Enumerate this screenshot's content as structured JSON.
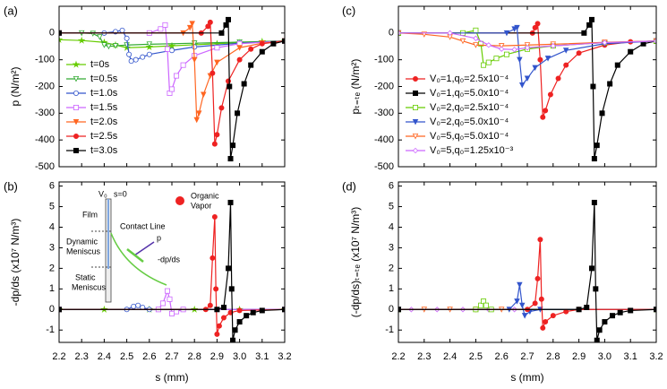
{
  "chart_data": [
    {
      "type": "line",
      "title": "(a)",
      "y_label": "p (N/m²)",
      "xlim": [
        2.2,
        3.2
      ],
      "xticks": [
        2.2,
        2.3,
        2.4,
        2.5,
        2.6,
        2.7,
        2.8,
        2.9,
        3,
        3.1,
        3.2
      ],
      "show_xtick_labels": false,
      "ylim": [
        -500,
        100
      ],
      "yticks": [
        -500,
        -400,
        -300,
        -200,
        -100,
        0
      ],
      "legend": "lower left",
      "series": [
        {
          "name": "t=0s",
          "color": "#66cc00",
          "marker": "star",
          "filled": true,
          "x": [
            2.2,
            2.3,
            2.4,
            2.45,
            2.5,
            2.6,
            2.7,
            2.8,
            2.9,
            3.0,
            3.1,
            3.2
          ],
          "values": [
            -25,
            -28,
            -35,
            -45,
            -55,
            -52,
            -48,
            -44,
            -40,
            -36,
            -32,
            -30
          ]
        },
        {
          "name": "t=0.5s",
          "color": "#33aa33",
          "marker": "triangle-down",
          "filled": false,
          "x": [
            2.2,
            2.3,
            2.35,
            2.38,
            2.4,
            2.42,
            2.45,
            2.5,
            2.6,
            2.8,
            3.0,
            3.2
          ],
          "values": [
            0,
            0,
            -2,
            -15,
            -45,
            -50,
            -48,
            -45,
            -42,
            -38,
            -34,
            -30
          ]
        },
        {
          "name": "t=1.0s",
          "color": "#3355cc",
          "marker": "circle",
          "filled": false,
          "x": [
            2.2,
            2.4,
            2.45,
            2.48,
            2.5,
            2.51,
            2.52,
            2.54,
            2.57,
            2.6,
            2.7,
            2.8,
            3.0,
            3.2
          ],
          "values": [
            0,
            0,
            5,
            10,
            -20,
            -80,
            -105,
            -100,
            -90,
            -80,
            -65,
            -52,
            -38,
            -30
          ]
        },
        {
          "name": "t=1.5s",
          "color": "#cc66ff",
          "marker": "square",
          "filled": false,
          "x": [
            2.2,
            2.6,
            2.65,
            2.67,
            2.68,
            2.69,
            2.7,
            2.72,
            2.75,
            2.8,
            2.9,
            3.0,
            3.2
          ],
          "values": [
            0,
            0,
            15,
            30,
            -60,
            -225,
            -210,
            -160,
            -120,
            -85,
            -55,
            -40,
            -30
          ]
        },
        {
          "name": "t=2.0s",
          "color": "#ff6622",
          "marker": "triangle-down",
          "filled": true,
          "x": [
            2.2,
            2.75,
            2.78,
            2.79,
            2.8,
            2.81,
            2.82,
            2.84,
            2.87,
            2.9,
            3.0,
            3.1,
            3.2
          ],
          "values": [
            0,
            0,
            20,
            35,
            -100,
            -325,
            -300,
            -230,
            -160,
            -110,
            -55,
            -38,
            -30
          ]
        },
        {
          "name": "t=2.5s",
          "color": "#ee2222",
          "marker": "circle",
          "filled": true,
          "x": [
            2.2,
            2.83,
            2.86,
            2.87,
            2.88,
            2.89,
            2.9,
            2.92,
            2.95,
            3.0,
            3.05,
            3.1,
            3.2
          ],
          "values": [
            0,
            0,
            25,
            40,
            -150,
            -415,
            -380,
            -280,
            -180,
            -100,
            -60,
            -40,
            -30
          ]
        },
        {
          "name": "t=3.0s",
          "color": "#000000",
          "marker": "square",
          "filled": true,
          "x": [
            2.2,
            2.92,
            2.94,
            2.95,
            2.955,
            2.96,
            2.97,
            2.99,
            3.02,
            3.05,
            3.1,
            3.15,
            3.2
          ],
          "values": [
            0,
            0,
            30,
            50,
            -200,
            -470,
            -420,
            -300,
            -190,
            -120,
            -70,
            -40,
            -30
          ]
        }
      ]
    },
    {
      "type": "line",
      "title": "(b)",
      "y_label": "-dp/ds (x10⁷ N/m³)",
      "x_label": "s (mm)",
      "xlim": [
        2.2,
        3.2
      ],
      "xticks": [
        2.2,
        2.3,
        2.4,
        2.5,
        2.6,
        2.7,
        2.8,
        2.9,
        {
          "value": 3,
          "label": "3.0"
        },
        3.1,
        3.2
      ],
      "show_xtick_labels": true,
      "ylim": [
        -1.6,
        6.2
      ],
      "yticks": [
        -1,
        0,
        1,
        2,
        3,
        4,
        5,
        6
      ],
      "annotations": [
        "V₀",
        "s=0",
        "Organic",
        "Vapor",
        "Film",
        "Contact Line",
        "p",
        "Dynamic",
        "Meniscus",
        "-dp/ds",
        "Static",
        "Meniscus"
      ],
      "series": [
        {
          "color": "#66cc00",
          "marker": "star",
          "filled": true,
          "x": [
            2.2,
            2.4,
            2.6,
            2.8,
            3.0,
            3.2
          ],
          "values": [
            0,
            0,
            0,
            0,
            0,
            0
          ]
        },
        {
          "color": "#3355cc",
          "marker": "circle",
          "filled": false,
          "x": [
            2.2,
            2.5,
            2.53,
            2.55,
            2.57,
            2.6,
            3.2
          ],
          "values": [
            0,
            0,
            0.15,
            0.2,
            0.1,
            0,
            0
          ]
        },
        {
          "color": "#cc66ff",
          "marker": "square",
          "filled": false,
          "x": [
            2.2,
            2.64,
            2.66,
            2.68,
            2.69,
            2.7,
            2.72,
            2.75,
            3.2
          ],
          "values": [
            0,
            0,
            0.3,
            0.9,
            0.5,
            -0.2,
            -0.1,
            0,
            0
          ]
        },
        {
          "color": "#ee2222",
          "marker": "circle",
          "filled": true,
          "x": [
            2.2,
            2.85,
            2.87,
            2.88,
            2.89,
            2.895,
            2.9,
            2.91,
            2.93,
            2.96,
            3.0,
            3.2
          ],
          "values": [
            0,
            0,
            0.2,
            2.5,
            4.5,
            1,
            -1.2,
            -0.8,
            -0.4,
            -0.15,
            -0.05,
            0
          ]
        },
        {
          "color": "#000000",
          "marker": "square",
          "filled": true,
          "x": [
            2.2,
            2.9,
            2.93,
            2.95,
            2.96,
            2.965,
            2.97,
            2.98,
            3.0,
            3.03,
            3.06,
            3.1,
            3.2
          ],
          "values": [
            0,
            0,
            0.1,
            2,
            5.2,
            1,
            -1.5,
            -1,
            -0.6,
            -0.3,
            -0.15,
            -0.05,
            0
          ]
        }
      ]
    },
    {
      "type": "line",
      "title": "(c)",
      "y_label": "pₜ₌ₜₑ (N/m²)",
      "xlim": [
        2.2,
        3.2
      ],
      "xticks": [
        2.2,
        2.3,
        2.4,
        2.5,
        2.6,
        2.7,
        2.8,
        2.9,
        3,
        3.1,
        3.2
      ],
      "show_xtick_labels": false,
      "ylim": [
        -500,
        100
      ],
      "yticks": [
        -500,
        -400,
        -300,
        -200,
        -100,
        0
      ],
      "legend": "lower left",
      "series": [
        {
          "name": "V₀=1,q₀=2.5x10⁻⁴",
          "color": "#ee2222",
          "marker": "circle",
          "filled": true,
          "x": [
            2.2,
            2.72,
            2.73,
            2.74,
            2.75,
            2.76,
            2.77,
            2.79,
            2.82,
            2.85,
            2.9,
            3.0,
            3.1,
            3.2
          ],
          "values": [
            0,
            0,
            20,
            35,
            -100,
            -315,
            -290,
            -230,
            -170,
            -120,
            -75,
            -45,
            -33,
            -30
          ]
        },
        {
          "name": "V₀=1,q₀=5.0x10⁻⁴",
          "color": "#000000",
          "marker": "square",
          "filled": true,
          "x": [
            2.2,
            2.92,
            2.94,
            2.95,
            2.955,
            2.96,
            2.97,
            2.99,
            3.02,
            3.05,
            3.1,
            3.15,
            3.2
          ],
          "values": [
            0,
            0,
            30,
            50,
            -200,
            -470,
            -420,
            -300,
            -190,
            -120,
            -70,
            -40,
            -30
          ]
        },
        {
          "name": "V₀=2,q₀=2.5x10⁻⁴",
          "color": "#66cc00",
          "marker": "square",
          "filled": false,
          "x": [
            2.2,
            2.45,
            2.5,
            2.52,
            2.53,
            2.55,
            2.58,
            2.62,
            2.7,
            2.8,
            3.0,
            3.2
          ],
          "values": [
            0,
            0,
            10,
            -40,
            -120,
            -110,
            -95,
            -80,
            -60,
            -48,
            -36,
            -30
          ]
        },
        {
          "name": "V₀=2,q₀=5.0x10⁻⁴",
          "color": "#3355cc",
          "marker": "triangle-down",
          "filled": true,
          "x": [
            2.2,
            2.62,
            2.65,
            2.66,
            2.67,
            2.68,
            2.7,
            2.73,
            2.78,
            2.85,
            3.0,
            3.2
          ],
          "values": [
            0,
            0,
            15,
            20,
            -100,
            -195,
            -170,
            -130,
            -95,
            -65,
            -40,
            -30
          ]
        },
        {
          "name": "V₀=5,q₀=5.0x10⁻⁴",
          "color": "#ff6622",
          "marker": "triangle-down",
          "filled": false,
          "x": [
            2.2,
            2.3,
            2.4,
            2.45,
            2.5,
            2.6,
            2.7,
            2.8,
            3.0,
            3.2
          ],
          "values": [
            0,
            -5,
            -15,
            -30,
            -45,
            -48,
            -45,
            -42,
            -35,
            -30
          ]
        },
        {
          "name": "V₀=5,q₀=1.25x10⁻³",
          "color": "#cc66ff",
          "marker": "diamond",
          "filled": false,
          "x": [
            2.2,
            2.4,
            2.5,
            2.55,
            2.6,
            2.65,
            2.7,
            2.8,
            3.0,
            3.2
          ],
          "values": [
            0,
            0,
            -20,
            -45,
            -60,
            -62,
            -55,
            -48,
            -36,
            -30
          ]
        }
      ]
    },
    {
      "type": "line",
      "title": "(d)",
      "y_label": "(-dp/ds)ₜ₌ₜₑ (x10⁷ N/m³)",
      "x_label": "s (mm)",
      "xlim": [
        2.2,
        3.2
      ],
      "xticks": [
        2.2,
        2.3,
        2.4,
        2.5,
        2.6,
        2.7,
        2.8,
        2.9,
        {
          "value": 3,
          "label": "3.0"
        },
        3.1,
        3.2
      ],
      "show_xtick_labels": true,
      "ylim": [
        -1.6,
        6.2
      ],
      "yticks": [
        -1,
        0,
        1,
        2,
        3,
        4,
        5,
        6
      ],
      "series": [
        {
          "color": "#ff6622",
          "marker": "triangle-down",
          "filled": false,
          "x": [
            2.2,
            2.3,
            2.4,
            2.5,
            2.6,
            3.2
          ],
          "values": [
            0,
            0,
            0,
            0,
            0,
            0
          ]
        },
        {
          "color": "#cc66ff",
          "marker": "diamond",
          "filled": false,
          "x": [
            2.25,
            2.35,
            2.45,
            2.55,
            2.65,
            3.2
          ],
          "values": [
            0,
            0,
            0,
            0,
            0,
            0
          ]
        },
        {
          "color": "#66cc00",
          "marker": "square",
          "filled": false,
          "x": [
            2.2,
            2.5,
            2.52,
            2.53,
            2.54,
            2.56,
            3.2
          ],
          "values": [
            0,
            0,
            0.2,
            0.4,
            0.2,
            0,
            0
          ]
        },
        {
          "color": "#3355cc",
          "marker": "triangle-down",
          "filled": true,
          "x": [
            2.2,
            2.63,
            2.66,
            2.67,
            2.68,
            2.69,
            2.71,
            2.75,
            3.2
          ],
          "values": [
            0,
            0,
            0.4,
            1.2,
            0.2,
            -0.3,
            -0.1,
            0,
            0
          ]
        },
        {
          "color": "#ee2222",
          "marker": "circle",
          "filled": true,
          "x": [
            2.2,
            2.7,
            2.73,
            2.74,
            2.75,
            2.755,
            2.76,
            2.77,
            2.8,
            2.85,
            2.9,
            3.2
          ],
          "values": [
            0,
            0,
            0.3,
            1.5,
            3.4,
            0.5,
            -0.9,
            -0.6,
            -0.3,
            -0.1,
            0,
            0
          ]
        },
        {
          "color": "#000000",
          "marker": "square",
          "filled": true,
          "x": [
            2.2,
            2.9,
            2.93,
            2.95,
            2.96,
            2.965,
            2.97,
            2.98,
            3.0,
            3.03,
            3.06,
            3.1,
            3.2
          ],
          "values": [
            0,
            0,
            0.1,
            2,
            5.2,
            1,
            -1.5,
            -1,
            -0.6,
            -0.3,
            -0.15,
            -0.05,
            0
          ]
        }
      ]
    }
  ]
}
